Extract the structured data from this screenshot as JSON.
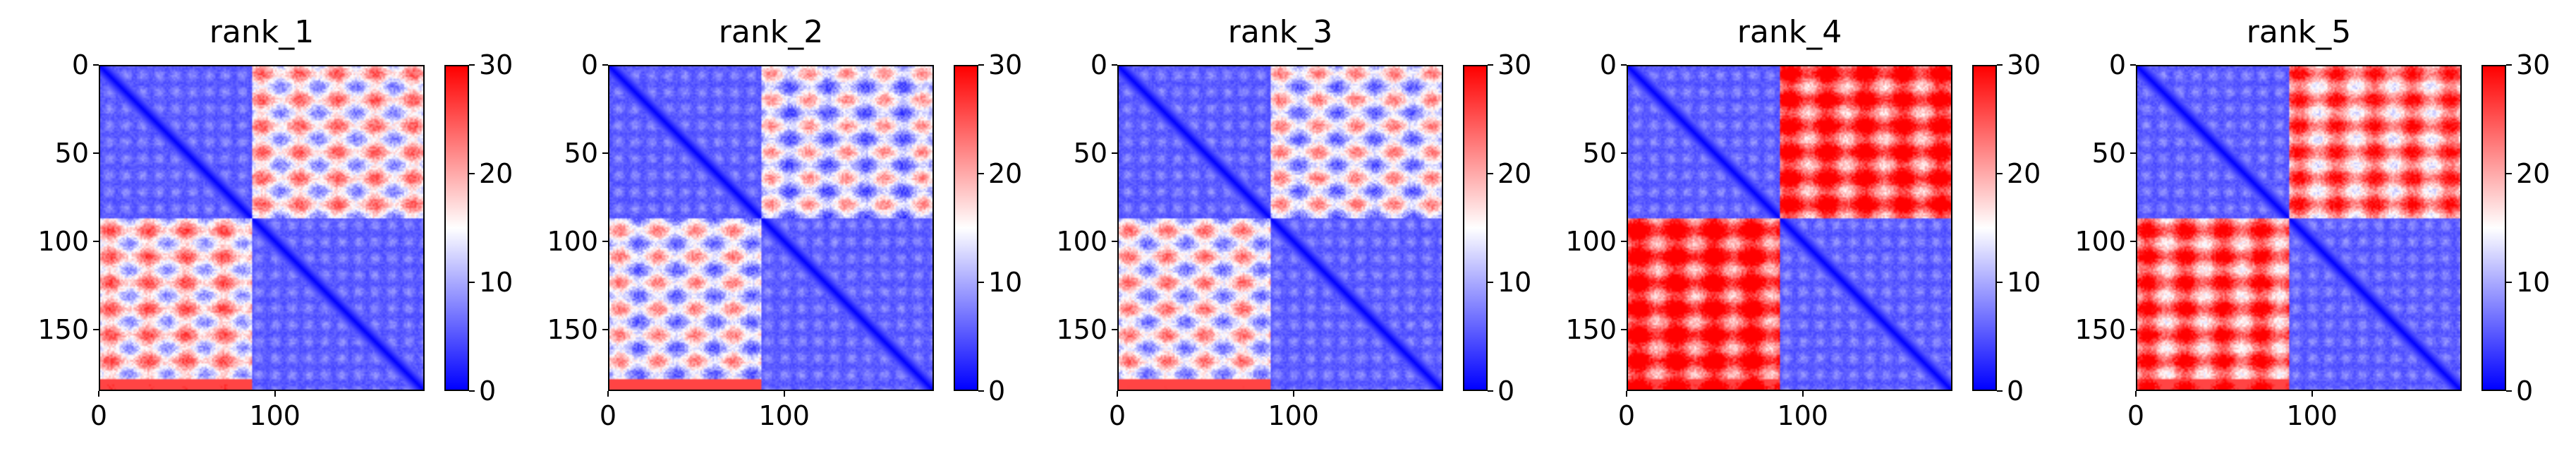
{
  "chart_data": [
    {
      "type": "heatmap",
      "title": "rank_1",
      "x": {
        "ticks": [
          0,
          100
        ],
        "range": [
          0,
          185
        ]
      },
      "y": {
        "ticks": [
          0,
          50,
          100,
          150
        ],
        "range": [
          0,
          185
        ]
      },
      "colorbar": {
        "ticks": [
          0,
          10,
          20,
          30
        ],
        "range": [
          0,
          30
        ],
        "colors": [
          "#0000ff",
          "#ffffff",
          "#ff0000"
        ]
      },
      "domain_boundary": 87,
      "block_levels": {
        "diagonal_blocks": 4,
        "upper_off_diagonal": 16,
        "lower_off_diagonal": 17
      }
    },
    {
      "type": "heatmap",
      "title": "rank_2",
      "x": {
        "ticks": [
          0,
          100
        ],
        "range": [
          0,
          185
        ]
      },
      "y": {
        "ticks": [
          0,
          50,
          100,
          150
        ],
        "range": [
          0,
          185
        ]
      },
      "colorbar": {
        "ticks": [
          0,
          10,
          20,
          30
        ],
        "range": [
          0,
          30
        ],
        "colors": [
          "#0000ff",
          "#ffffff",
          "#ff0000"
        ]
      },
      "domain_boundary": 87,
      "block_levels": {
        "diagonal_blocks": 4,
        "upper_off_diagonal": 13,
        "lower_off_diagonal": 14
      }
    },
    {
      "type": "heatmap",
      "title": "rank_3",
      "x": {
        "ticks": [
          0,
          100
        ],
        "range": [
          0,
          185
        ]
      },
      "y": {
        "ticks": [
          0,
          50,
          100,
          150
        ],
        "range": [
          0,
          185
        ]
      },
      "colorbar": {
        "ticks": [
          0,
          10,
          20,
          30
        ],
        "range": [
          0,
          30
        ],
        "colors": [
          "#0000ff",
          "#ffffff",
          "#ff0000"
        ]
      },
      "domain_boundary": 87,
      "block_levels": {
        "diagonal_blocks": 4,
        "upper_off_diagonal": 14,
        "lower_off_diagonal": 15
      }
    },
    {
      "type": "heatmap",
      "title": "rank_4",
      "x": {
        "ticks": [
          0,
          100
        ],
        "range": [
          0,
          185
        ]
      },
      "y": {
        "ticks": [
          0,
          50,
          100,
          150
        ],
        "range": [
          0,
          185
        ]
      },
      "colorbar": {
        "ticks": [
          0,
          10,
          20,
          30
        ],
        "range": [
          0,
          30
        ],
        "colors": [
          "#0000ff",
          "#ffffff",
          "#ff0000"
        ]
      },
      "domain_boundary": 87,
      "block_levels": {
        "diagonal_blocks": 4,
        "upper_off_diagonal": 26,
        "lower_off_diagonal": 27
      }
    },
    {
      "type": "heatmap",
      "title": "rank_5",
      "x": {
        "ticks": [
          0,
          100
        ],
        "range": [
          0,
          185
        ]
      },
      "y": {
        "ticks": [
          0,
          50,
          100,
          150
        ],
        "range": [
          0,
          185
        ]
      },
      "colorbar": {
        "ticks": [
          0,
          10,
          20,
          30
        ],
        "range": [
          0,
          30
        ],
        "colors": [
          "#0000ff",
          "#ffffff",
          "#ff0000"
        ]
      },
      "domain_boundary": 87,
      "block_levels": {
        "diagonal_blocks": 4,
        "upper_off_diagonal": 22,
        "lower_off_diagonal": 24
      }
    }
  ]
}
